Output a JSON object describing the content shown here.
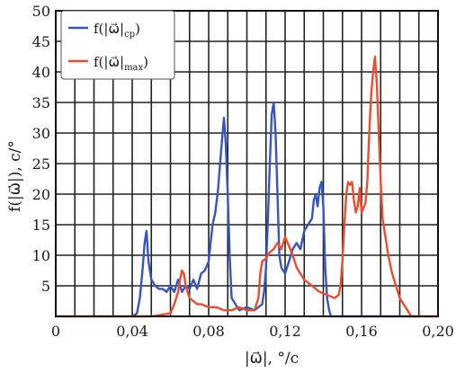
{
  "chart_data": {
    "type": "line",
    "xlabel": "|ω⃗|, °/c",
    "ylabel": "f(|ω⃗|), c/°",
    "xlim": [
      0,
      0.2
    ],
    "ylim": [
      0,
      50
    ],
    "xticks": [
      0,
      0.04,
      0.08,
      0.12,
      0.16,
      0.2
    ],
    "xtick_labels": [
      "0",
      "0,04",
      "0,08",
      "0,12",
      "0,16",
      "0,20"
    ],
    "yticks": [
      5,
      10,
      15,
      20,
      25,
      30,
      35,
      40,
      45,
      50
    ],
    "ytick_labels": [
      "5",
      "10",
      "15",
      "20",
      "25",
      "30",
      "35",
      "40",
      "45",
      "50"
    ],
    "grid": true,
    "legend_position": "top-left",
    "series": [
      {
        "name": "f(|ω⃗|cp)",
        "legend_main": "f(|ω⃗|",
        "legend_sub": "cp",
        "color": "#3555c4",
        "x": [
          0.04,
          0.0425,
          0.044,
          0.0455,
          0.0465,
          0.0475,
          0.0485,
          0.05,
          0.052,
          0.054,
          0.056,
          0.058,
          0.06,
          0.062,
          0.064,
          0.066,
          0.068,
          0.07,
          0.072,
          0.074,
          0.076,
          0.078,
          0.08,
          0.082,
          0.0835,
          0.085,
          0.086,
          0.087,
          0.088,
          0.089,
          0.09,
          0.091,
          0.092,
          0.094,
          0.096,
          0.1,
          0.104,
          0.106,
          0.108,
          0.109,
          0.11,
          0.111,
          0.112,
          0.113,
          0.114,
          0.115,
          0.116,
          0.117,
          0.118,
          0.12,
          0.122,
          0.124,
          0.126,
          0.128,
          0.13,
          0.132,
          0.134,
          0.135,
          0.136,
          0.137,
          0.138,
          0.139,
          0.14,
          0.141,
          0.142,
          0.143,
          0.144,
          0.146,
          0.15,
          0.19
        ],
        "y": [
          0,
          0.5,
          3,
          8,
          12,
          14,
          9,
          6,
          5,
          4.5,
          4.5,
          4,
          5,
          4,
          6,
          4,
          5,
          4.5,
          6,
          4.5,
          7,
          7.5,
          9,
          15,
          17,
          21,
          25,
          29,
          32.5,
          28,
          20,
          10,
          3,
          2,
          1,
          1.5,
          1,
          1.5,
          2,
          4,
          8,
          16,
          25,
          33,
          35,
          30,
          20,
          10,
          8,
          7,
          9,
          11,
          12,
          11,
          14,
          15,
          16,
          19,
          20,
          18,
          21,
          22,
          18,
          8,
          3,
          1,
          0,
          0,
          0,
          0
        ]
      },
      {
        "name": "f(|ω⃗|max)",
        "legend_main": "f(|ω⃗|",
        "legend_sub": "max",
        "color": "#ef4c2e",
        "x": [
          0,
          0.05,
          0.06,
          0.062,
          0.064,
          0.065,
          0.066,
          0.067,
          0.068,
          0.07,
          0.072,
          0.074,
          0.076,
          0.08,
          0.084,
          0.088,
          0.092,
          0.096,
          0.1,
          0.104,
          0.106,
          0.107,
          0.108,
          0.11,
          0.112,
          0.114,
          0.116,
          0.118,
          0.12,
          0.122,
          0.124,
          0.126,
          0.128,
          0.13,
          0.134,
          0.138,
          0.142,
          0.146,
          0.148,
          0.149,
          0.15,
          0.151,
          0.152,
          0.153,
          0.154,
          0.155,
          0.156,
          0.157,
          0.158,
          0.159,
          0.16,
          0.162,
          0.163,
          0.164,
          0.165,
          0.166,
          0.167,
          0.168,
          0.169,
          0.17,
          0.171,
          0.172,
          0.174,
          0.176,
          0.178,
          0.18,
          0.182,
          0.184,
          0.186,
          0.188,
          0.2
        ],
        "y": [
          0,
          0,
          0.5,
          2,
          4,
          6,
          7.5,
          7,
          5,
          3,
          2.5,
          2,
          2,
          1.5,
          1.5,
          1,
          1,
          1.5,
          1,
          1,
          3,
          7,
          9,
          9.5,
          10.5,
          11,
          12,
          11,
          13,
          11.5,
          10,
          8,
          7,
          6,
          5,
          4,
          3.5,
          3,
          3.5,
          5,
          9,
          15,
          20,
          22,
          21.5,
          22,
          19,
          17,
          18,
          21,
          17,
          18.5,
          22,
          30,
          36,
          40,
          42.5,
          38,
          30,
          22,
          16,
          14,
          10,
          7,
          5,
          3,
          2,
          1,
          0,
          0,
          0
        ]
      }
    ]
  }
}
